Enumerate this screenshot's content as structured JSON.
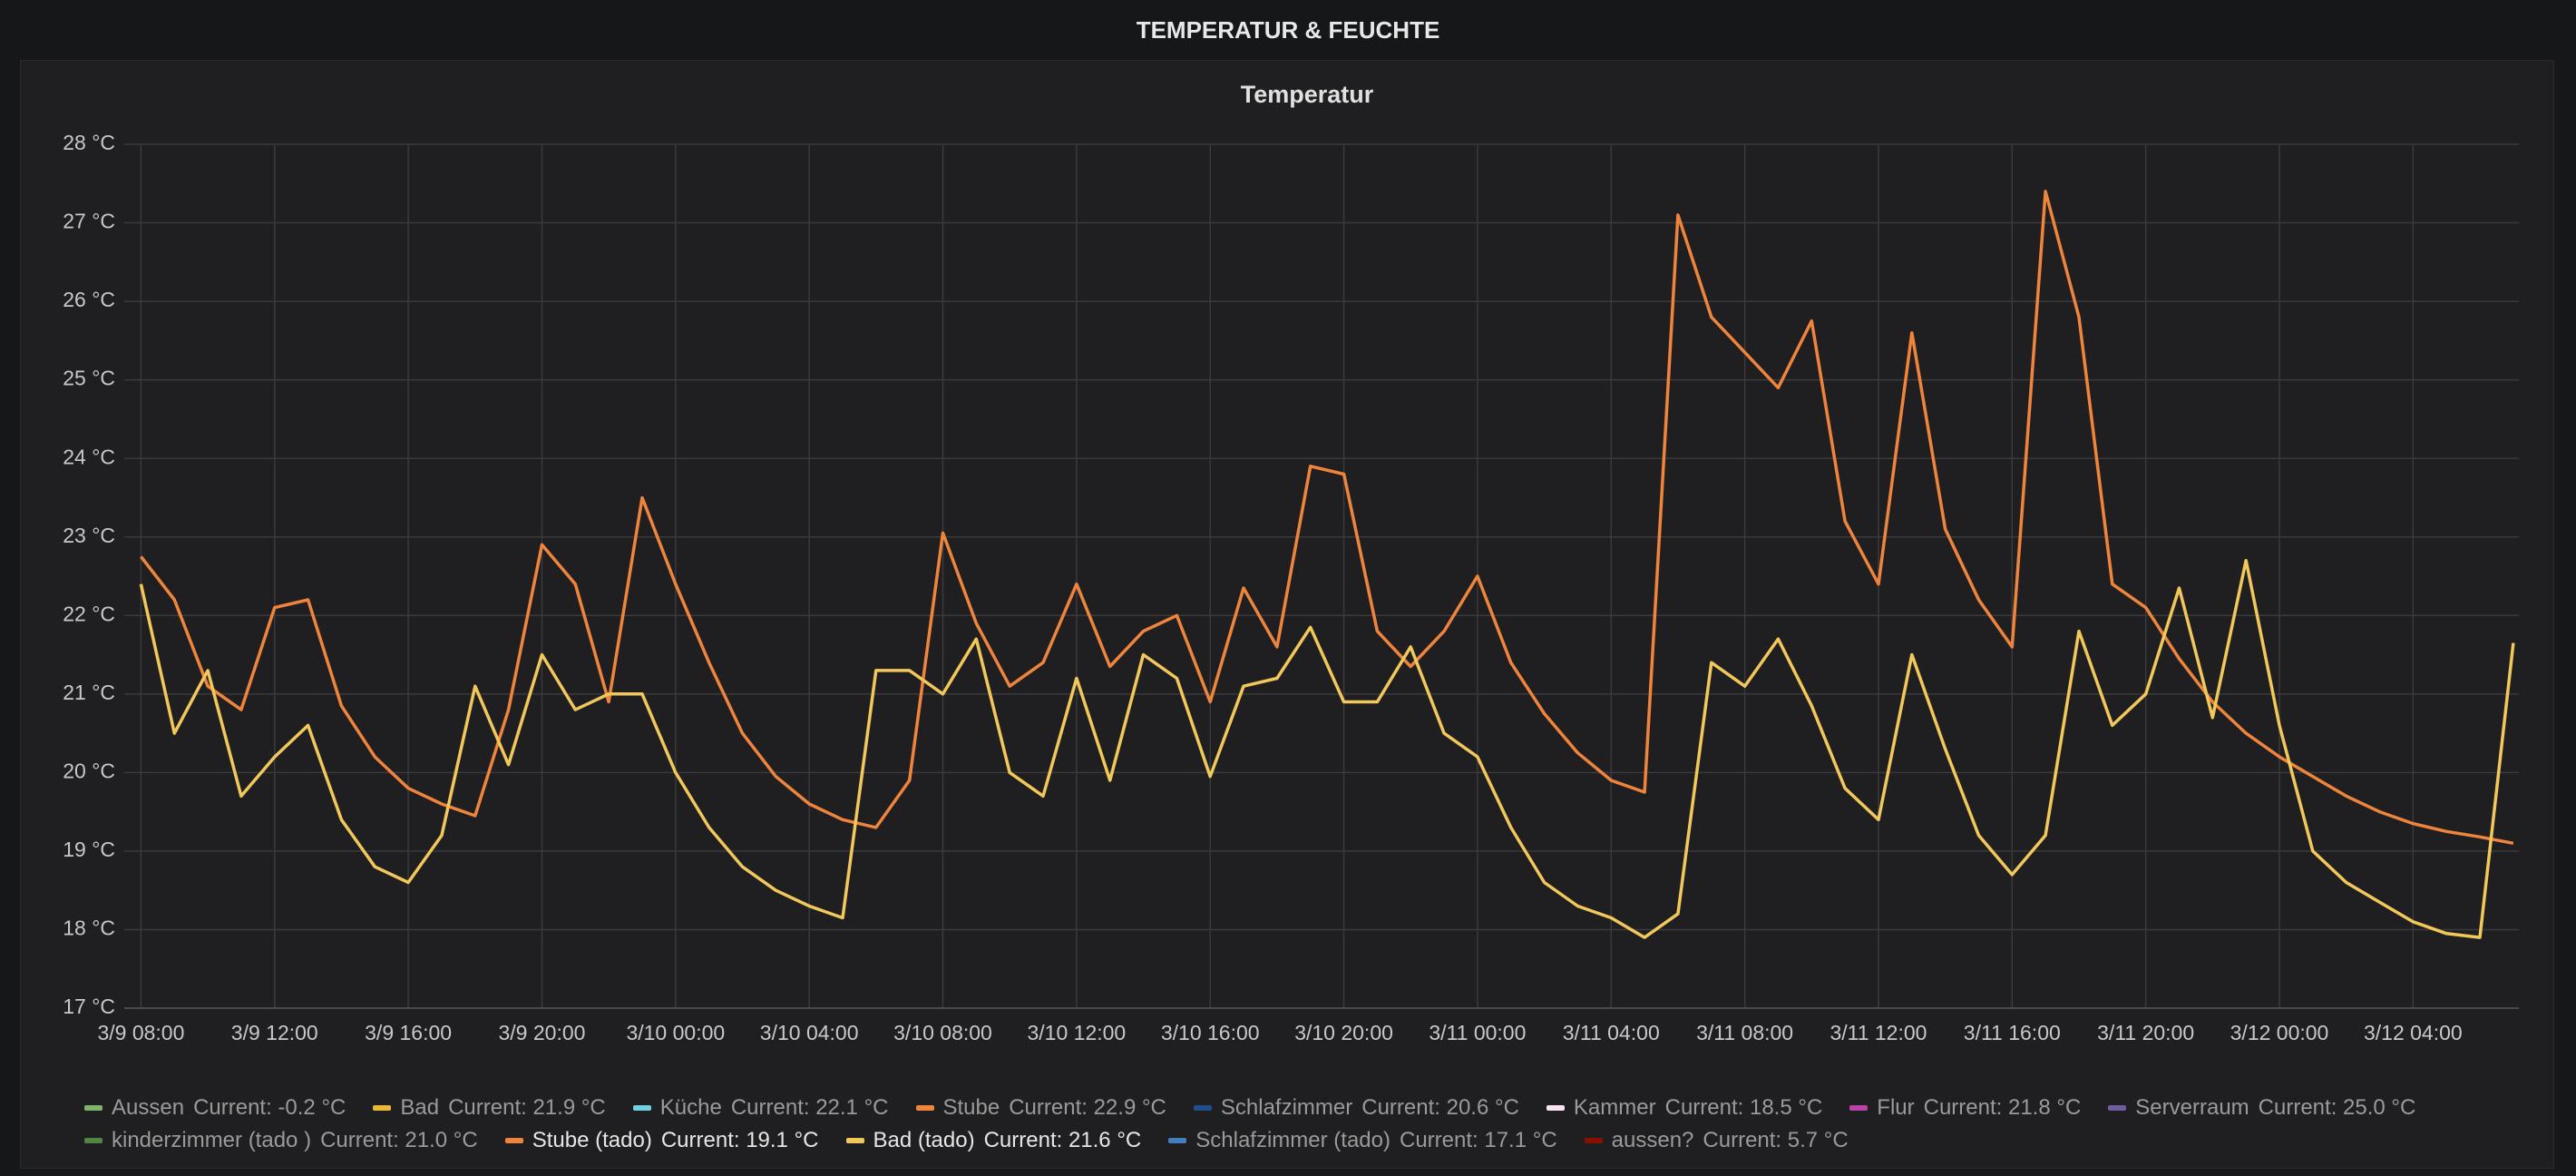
{
  "header": {
    "title": "TEMPERATUR & FEUCHTE"
  },
  "chart_data": {
    "type": "line",
    "title": "Temperatur",
    "x": [
      "3/9 08:00",
      "3/9 09:00",
      "3/9 10:00",
      "3/9 11:00",
      "3/9 12:00",
      "3/9 13:00",
      "3/9 14:00",
      "3/9 15:00",
      "3/9 16:00",
      "3/9 17:00",
      "3/9 18:00",
      "3/9 19:00",
      "3/9 20:00",
      "3/9 21:00",
      "3/9 22:00",
      "3/9 23:00",
      "3/10 00:00",
      "3/10 01:00",
      "3/10 02:00",
      "3/10 03:00",
      "3/10 04:00",
      "3/10 05:00",
      "3/10 06:00",
      "3/10 07:00",
      "3/10 08:00",
      "3/10 09:00",
      "3/10 10:00",
      "3/10 11:00",
      "3/10 12:00",
      "3/10 13:00",
      "3/10 14:00",
      "3/10 15:00",
      "3/10 16:00",
      "3/10 17:00",
      "3/10 18:00",
      "3/10 19:00",
      "3/10 20:00",
      "3/10 21:00",
      "3/10 22:00",
      "3/10 23:00",
      "3/11 00:00",
      "3/11 01:00",
      "3/11 02:00",
      "3/11 03:00",
      "3/11 04:00",
      "3/11 05:00",
      "3/11 06:00",
      "3/11 07:00",
      "3/11 08:00",
      "3/11 09:00",
      "3/11 10:00",
      "3/11 11:00",
      "3/11 12:00",
      "3/11 13:00",
      "3/11 14:00",
      "3/11 15:00",
      "3/11 16:00",
      "3/11 17:00",
      "3/11 18:00",
      "3/11 19:00",
      "3/11 20:00",
      "3/11 21:00",
      "3/11 22:00",
      "3/11 23:00",
      "3/12 00:00",
      "3/12 01:00",
      "3/12 02:00",
      "3/12 03:00",
      "3/12 04:00",
      "3/12 05:00",
      "3/12 06:00",
      "3/12 07:00"
    ],
    "xlim": [
      "3/9 07:30",
      "3/12 07:10"
    ],
    "xticks": [
      "3/9 08:00",
      "3/9 12:00",
      "3/9 16:00",
      "3/9 20:00",
      "3/10 00:00",
      "3/10 04:00",
      "3/10 08:00",
      "3/10 12:00",
      "3/10 16:00",
      "3/10 20:00",
      "3/11 00:00",
      "3/11 04:00",
      "3/11 08:00",
      "3/11 12:00",
      "3/11 16:00",
      "3/11 20:00",
      "3/12 00:00",
      "3/12 04:00"
    ],
    "ylim": [
      17,
      28
    ],
    "yticks": [
      {
        "value": 17,
        "label": "17 °C"
      },
      {
        "value": 18,
        "label": "18 °C"
      },
      {
        "value": 19,
        "label": "19 °C"
      },
      {
        "value": 20,
        "label": "20 °C"
      },
      {
        "value": 21,
        "label": "21 °C"
      },
      {
        "value": 22,
        "label": "22 °C"
      },
      {
        "value": 23,
        "label": "23 °C"
      },
      {
        "value": 24,
        "label": "24 °C"
      },
      {
        "value": 25,
        "label": "25 °C"
      },
      {
        "value": 26,
        "label": "26 °C"
      },
      {
        "value": 27,
        "label": "27 °C"
      },
      {
        "value": 28,
        "label": "28 °C"
      }
    ],
    "grid": true,
    "series": [
      {
        "name": "Aussen",
        "color": "#7eb26d",
        "current": "Current: -0.2 °C"
      },
      {
        "name": "Bad",
        "color": "#eab839",
        "current": "Current: 21.9 °C"
      },
      {
        "name": "Küche",
        "color": "#6ed0e0",
        "current": "Current: 22.1 °C"
      },
      {
        "name": "Stube",
        "color": "#ef843c",
        "current": "Current: 22.9 °C"
      },
      {
        "name": "Schlafzimmer",
        "color": "#1f4e8c",
        "current": "Current: 20.6 °C"
      },
      {
        "name": "Kammer",
        "color": "#f9e2f2",
        "current": "Current: 18.5 °C"
      },
      {
        "name": "Flur",
        "color": "#ba43a9",
        "current": "Current: 21.8 °C"
      },
      {
        "name": "Serverraum",
        "color": "#705da0",
        "current": "Current: 25.0 °C"
      },
      {
        "name": "kinderzimmer (tado )",
        "color": "#508642",
        "current": "Current: 21.0 °C"
      },
      {
        "name": "Stube (tado)",
        "color": "#ef843c",
        "current": "Current: 19.1 °C",
        "values": [
          22.75,
          22.2,
          21.1,
          20.8,
          22.1,
          22.2,
          20.85,
          20.2,
          19.8,
          19.6,
          19.45,
          20.8,
          22.9,
          22.4,
          20.9,
          23.5,
          22.4,
          21.4,
          20.5,
          19.95,
          19.6,
          19.4,
          19.3,
          19.9,
          23.05,
          21.9,
          21.1,
          21.4,
          22.4,
          21.35,
          21.8,
          22.0,
          20.9,
          22.35,
          21.6,
          23.9,
          23.8,
          21.8,
          21.35,
          21.8,
          22.5,
          21.4,
          20.75,
          20.25,
          19.9,
          19.75,
          27.1,
          25.8,
          25.35,
          24.9,
          25.75,
          23.2,
          22.4,
          25.6,
          23.1,
          22.2,
          21.6,
          27.4,
          25.8,
          22.4,
          22.1,
          21.45,
          20.9,
          20.5,
          20.2,
          19.95,
          19.7,
          19.5,
          19.35,
          19.25,
          19.18,
          19.1
        ]
      },
      {
        "name": "Bad (tado)",
        "color": "#f2c85b",
        "current": "Current: 21.6 °C",
        "values": [
          22.4,
          20.5,
          21.3,
          19.7,
          20.2,
          20.6,
          19.4,
          18.8,
          18.6,
          19.2,
          21.1,
          20.1,
          21.5,
          20.8,
          21.0,
          21.0,
          20.0,
          19.3,
          18.8,
          18.5,
          18.3,
          18.15,
          21.3,
          21.3,
          21.0,
          21.7,
          20.0,
          19.7,
          21.2,
          19.9,
          21.5,
          21.2,
          19.95,
          21.1,
          21.2,
          21.85,
          20.9,
          20.9,
          21.6,
          20.5,
          20.2,
          19.3,
          18.6,
          18.3,
          18.15,
          17.9,
          18.2,
          21.4,
          21.1,
          21.7,
          20.85,
          19.8,
          19.4,
          21.5,
          20.3,
          19.2,
          18.7,
          19.2,
          21.8,
          20.6,
          21.0,
          22.35,
          20.7,
          22.7,
          20.6,
          19.0,
          18.6,
          18.35,
          18.1,
          17.95,
          17.9,
          21.65
        ]
      },
      {
        "name": "Schlafzimmer (tado)",
        "color": "#447ebc",
        "current": "Current: 17.1 °C"
      },
      {
        "name": "aussen?",
        "color": "#890f02",
        "current": "Current: 5.7 °C"
      }
    ]
  }
}
